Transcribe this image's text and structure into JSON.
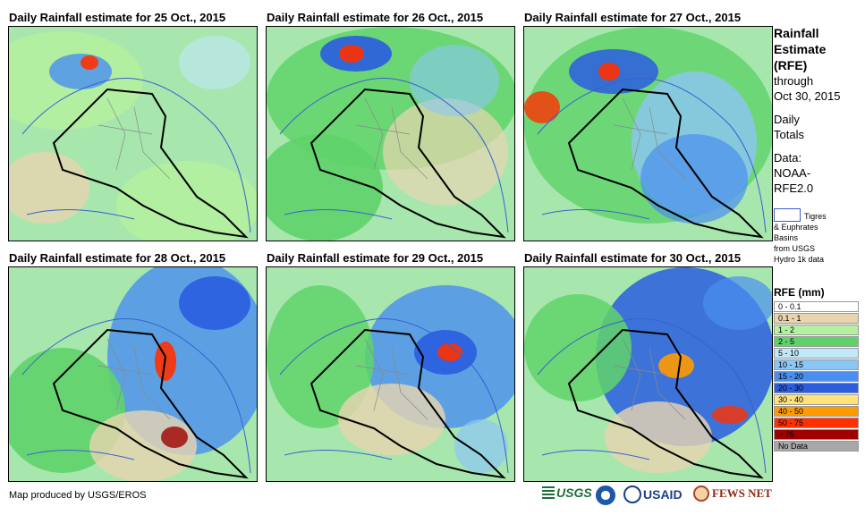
{
  "panels": [
    {
      "title": "Daily Rainfall estimate for 25 Oct., 2015"
    },
    {
      "title": "Daily Rainfall estimate for 26 Oct., 2015"
    },
    {
      "title": "Daily Rainfall estimate for 27 Oct., 2015"
    },
    {
      "title": "Daily Rainfall estimate for 28 Oct., 2015"
    },
    {
      "title": "Daily Rainfall estimate for 29 Oct., 2015"
    },
    {
      "title": "Daily Rainfall estimate for 30 Oct., 2015"
    }
  ],
  "side": {
    "title_line1": "Rainfall",
    "title_line2": "Estimate",
    "title_line3": "(RFE)",
    "through": "through",
    "date": "Oct 30, 2015",
    "daily_line1": "Daily",
    "daily_line2": "Totals",
    "data_line1": "Data:",
    "data_line2": "NOAA-",
    "data_line3": "RFE2.0"
  },
  "basin_legend": {
    "line1": "Tigres",
    "line2": "& Euphrates",
    "line3": "Basins",
    "line4": "from USGS",
    "line5": "Hydro 1k data",
    "color": "#3a5fd0"
  },
  "legend": {
    "title": "RFE (mm)",
    "items": [
      {
        "label": "0 - 0.1",
        "color": "#ffffff"
      },
      {
        "label": "0.1 - 1",
        "color": "#e8d5b0"
      },
      {
        "label": "1 - 2",
        "color": "#b4f0a0"
      },
      {
        "label": "2 - 5",
        "color": "#5fd36a"
      },
      {
        "label": "5 - 10",
        "color": "#bfe8f8"
      },
      {
        "label": "10 - 15",
        "color": "#8cc6f5"
      },
      {
        "label": "15 - 20",
        "color": "#4a8ff0"
      },
      {
        "label": "20 - 30",
        "color": "#2a5de0"
      },
      {
        "label": "30 - 40",
        "color": "#ffe37a"
      },
      {
        "label": "40 - 50",
        "color": "#ff9a00"
      },
      {
        "label": "50 - 75",
        "color": "#ff3000"
      },
      {
        "label": "> 75",
        "color": "#a00000"
      },
      {
        "label": "No Data",
        "color": "#a8a8a8"
      }
    ]
  },
  "footer": {
    "credit": "Map produced by USGS/EROS"
  },
  "logos": {
    "usgs": "USGS",
    "usaid": "USAID",
    "fewsnet": "FEWS NET"
  }
}
